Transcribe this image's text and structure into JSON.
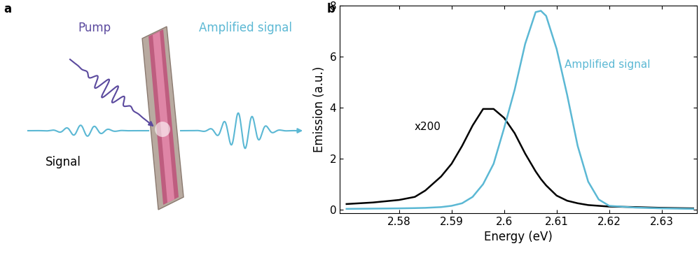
{
  "diagram": {
    "panel_label": "a",
    "pump": "Pump",
    "signal": "Signal",
    "output": "Amplified signal"
  },
  "chart_data": {
    "panel_label": "b",
    "type": "line",
    "xlabel": "Energy (eV)",
    "ylabel": "Emission (a.u.)",
    "xlim": [
      2.5687,
      2.6367
    ],
    "ylim": [
      -0.14,
      8
    ],
    "xticks": [
      2.58,
      2.59,
      2.6,
      {
        "value": 2.61,
        "label": "2.61"
      },
      2.62,
      2.63
    ],
    "yticks": [
      0,
      2,
      4,
      6,
      8
    ],
    "x": [
      2.57,
      2.575,
      2.58,
      2.583,
      2.585,
      2.588,
      2.59,
      2.592,
      2.594,
      2.596,
      2.598,
      2.6,
      2.602,
      2.604,
      2.606,
      2.607,
      2.608,
      2.61,
      2.612,
      2.614,
      2.616,
      2.618,
      2.62,
      2.625,
      2.63,
      2.636
    ],
    "series": [
      {
        "name": "x200",
        "color": "#000000",
        "values": [
          0.22,
          0.28,
          0.38,
          0.5,
          0.75,
          1.3,
          1.8,
          2.5,
          3.3,
          3.95,
          3.95,
          3.6,
          3.0,
          2.2,
          1.5,
          1.2,
          0.95,
          0.55,
          0.35,
          0.25,
          0.18,
          0.15,
          0.12,
          0.1,
          0.07,
          0.05
        ]
      },
      {
        "name": "Amplified signal",
        "color": "#5bb8d4",
        "values": [
          0.03,
          0.04,
          0.05,
          0.06,
          0.07,
          0.1,
          0.15,
          0.25,
          0.5,
          1.0,
          1.8,
          3.2,
          4.7,
          6.5,
          7.75,
          7.8,
          7.6,
          6.3,
          4.5,
          2.5,
          1.1,
          0.4,
          0.15,
          0.08,
          0.05,
          0.03
        ]
      }
    ]
  }
}
